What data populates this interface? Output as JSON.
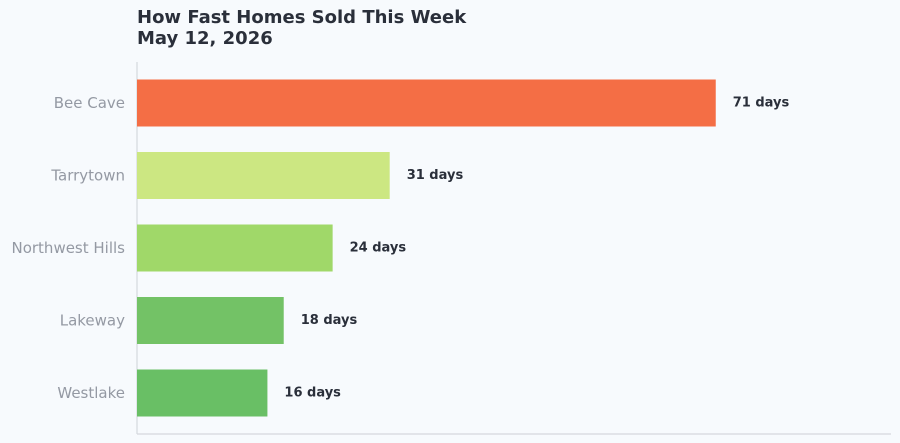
{
  "chart_data": {
    "type": "bar",
    "orientation": "horizontal",
    "title": "How Fast Homes Sold This Week",
    "subtitle": "May 12, 2026",
    "categories": [
      "Bee Cave",
      "Tarrytown",
      "Northwest Hills",
      "Lakeway",
      "Westlake"
    ],
    "values": [
      71,
      31,
      24,
      18,
      16
    ],
    "value_labels": [
      "71 days",
      "31 days",
      "24 days",
      "18 days",
      "16 days"
    ],
    "unit": "days",
    "colors": [
      "#f46e45",
      "#cce782",
      "#a0d869",
      "#73c266",
      "#69bf65"
    ],
    "xlim": [
      0,
      92.5
    ],
    "grid": false,
    "legend": "none"
  }
}
